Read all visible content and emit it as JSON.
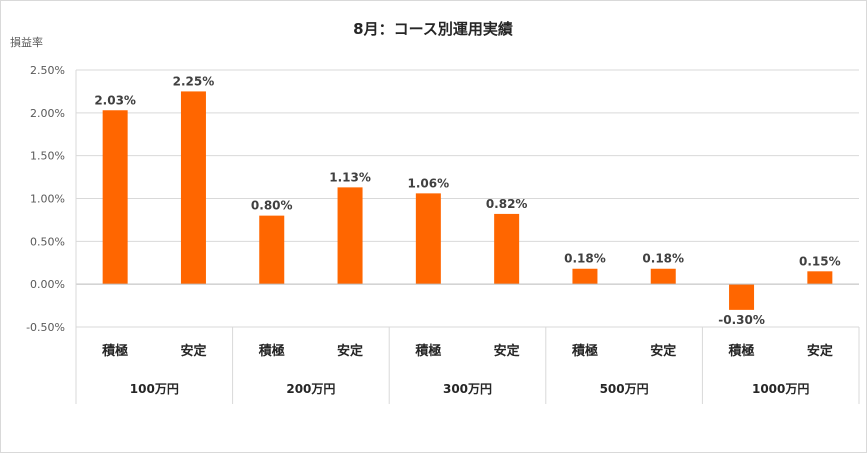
{
  "chart_data": {
    "type": "bar",
    "title": "8月：コース別運用実績",
    "ylabel": "損益率",
    "ylim": [
      -0.5,
      2.5
    ],
    "yticks": [
      {
        "value": 2.5,
        "label": "2.50%"
      },
      {
        "value": 2.0,
        "label": "2.00%"
      },
      {
        "value": 1.5,
        "label": "1.50%"
      },
      {
        "value": 1.0,
        "label": "1.00%"
      },
      {
        "value": 0.5,
        "label": "0.50%"
      },
      {
        "value": 0.0,
        "label": "0.00%"
      },
      {
        "value": -0.5,
        "label": "-0.50%"
      }
    ],
    "groups": [
      {
        "label": "100万円",
        "bars": [
          {
            "category": "積極",
            "value": 2.03,
            "label": "2.03%"
          },
          {
            "category": "安定",
            "value": 2.25,
            "label": "2.25%"
          }
        ]
      },
      {
        "label": "200万円",
        "bars": [
          {
            "category": "積極",
            "value": 0.8,
            "label": "0.80%"
          },
          {
            "category": "安定",
            "value": 1.13,
            "label": "1.13%"
          }
        ]
      },
      {
        "label": "300万円",
        "bars": [
          {
            "category": "積極",
            "value": 1.06,
            "label": "1.06%"
          },
          {
            "category": "安定",
            "value": 0.82,
            "label": "0.82%"
          }
        ]
      },
      {
        "label": "500万円",
        "bars": [
          {
            "category": "積極",
            "value": 0.18,
            "label": "0.18%"
          },
          {
            "category": "安定",
            "value": 0.18,
            "label": "0.18%"
          }
        ]
      },
      {
        "label": "1000万円",
        "bars": [
          {
            "category": "積極",
            "value": -0.3,
            "label": "-0.30%"
          },
          {
            "category": "安定",
            "value": 0.15,
            "label": "0.15%"
          }
        ]
      }
    ],
    "bar_color": "#FF6600",
    "grid": true,
    "legend": "none"
  }
}
